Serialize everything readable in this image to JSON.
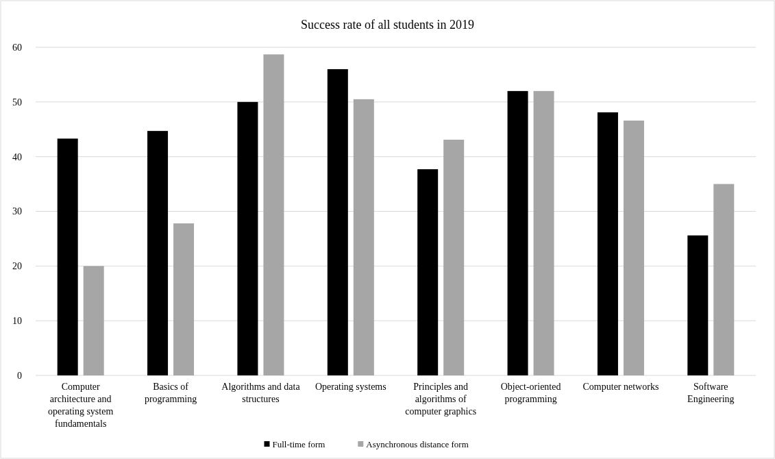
{
  "chart_data": {
    "type": "bar",
    "title": "Success rate of all students in 2019",
    "categories": [
      "Computer architecture and operating system fundamentals",
      "Basics of programming",
      "Algorithms and data structures",
      "Operating systems",
      "Principles and algorithms of computer graphics",
      "Object-oriented programming",
      "Computer networks",
      "Software Engineering"
    ],
    "series": [
      {
        "name": "Full-time form",
        "color": "#000000",
        "values": [
          43.3,
          44.7,
          50,
          56,
          37.7,
          52,
          48.1,
          25.6
        ]
      },
      {
        "name": "Asynchronous distance form",
        "color": "#a6a6a6",
        "values": [
          20,
          27.8,
          58.7,
          50.5,
          43.1,
          52,
          46.6,
          35
        ]
      }
    ],
    "ylim": [
      0,
      60
    ],
    "yticks": [
      0,
      10,
      20,
      30,
      40,
      50,
      60
    ],
    "grid": "y",
    "legend": "bottom"
  }
}
